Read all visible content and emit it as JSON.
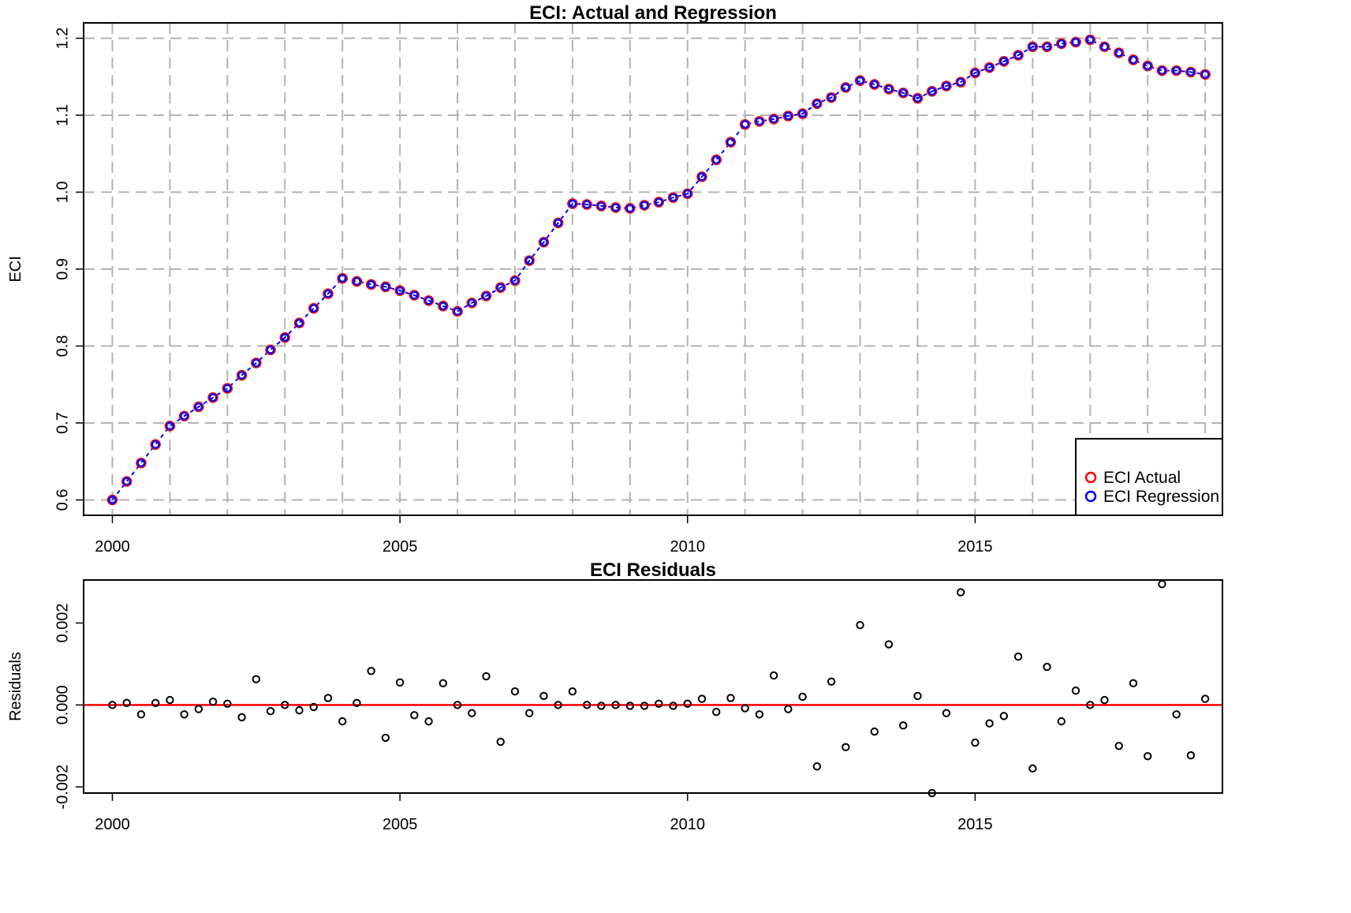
{
  "chart_data": [
    {
      "type": "scatter",
      "title": "ECI: Actual and Regression",
      "xlabel": "",
      "ylabel": "ECI",
      "xlim": [
        1999.5,
        2019.3
      ],
      "ylim": [
        0.58,
        1.22
      ],
      "x_ticks": [
        "2000",
        "2005",
        "2010",
        "2015"
      ],
      "y_ticks": [
        "0.6",
        "0.7",
        "0.8",
        "0.9",
        "1.0",
        "1.1",
        "1.2"
      ],
      "grid": true,
      "legend_position": "bottom-right",
      "x_start": 2000,
      "x_step": 0.25,
      "series": [
        {
          "name": "ECI Actual",
          "color": "#ff0000",
          "values": [
            0.6,
            0.624,
            0.648,
            0.672,
            0.696,
            0.709,
            0.721,
            0.733,
            0.745,
            0.762,
            0.778,
            0.795,
            0.811,
            0.83,
            0.849,
            0.868,
            0.888,
            0.884,
            0.88,
            0.877,
            0.872,
            0.866,
            0.859,
            0.852,
            0.845,
            0.856,
            0.865,
            0.876,
            0.885,
            0.911,
            0.935,
            0.96,
            0.985,
            0.984,
            0.982,
            0.98,
            0.979,
            0.983,
            0.987,
            0.993,
            0.998,
            1.02,
            1.042,
            1.065,
            1.088,
            1.092,
            1.095,
            1.099,
            1.102,
            1.115,
            1.123,
            1.136,
            1.145,
            1.14,
            1.134,
            1.129,
            1.122,
            1.131,
            1.138,
            1.143,
            1.155,
            1.162,
            1.17,
            1.178,
            1.189,
            1.189,
            1.193,
            1.195,
            1.198,
            1.189,
            1.181,
            1.172,
            1.164,
            1.158,
            1.158,
            1.156,
            1.153
          ]
        },
        {
          "name": "ECI Regression",
          "color": "#0000ff",
          "values": [
            0.6,
            0.624,
            0.648,
            0.672,
            0.696,
            0.709,
            0.721,
            0.733,
            0.745,
            0.762,
            0.778,
            0.795,
            0.811,
            0.83,
            0.849,
            0.868,
            0.888,
            0.884,
            0.88,
            0.877,
            0.872,
            0.866,
            0.859,
            0.852,
            0.845,
            0.856,
            0.865,
            0.876,
            0.885,
            0.911,
            0.935,
            0.96,
            0.985,
            0.984,
            0.982,
            0.98,
            0.979,
            0.983,
            0.987,
            0.993,
            0.998,
            1.02,
            1.042,
            1.065,
            1.088,
            1.092,
            1.095,
            1.099,
            1.102,
            1.115,
            1.123,
            1.136,
            1.145,
            1.14,
            1.134,
            1.129,
            1.122,
            1.131,
            1.138,
            1.143,
            1.155,
            1.162,
            1.17,
            1.178,
            1.189,
            1.189,
            1.193,
            1.195,
            1.198,
            1.189,
            1.181,
            1.172,
            1.164,
            1.158,
            1.158,
            1.156,
            1.153
          ]
        }
      ]
    },
    {
      "type": "scatter",
      "title": "ECI Residuals",
      "xlabel": "",
      "ylabel": "Residuals",
      "xlim": [
        1999.5,
        2019.3
      ],
      "ylim": [
        -0.00215,
        0.00305
      ],
      "x_ticks": [
        "2000",
        "2005",
        "2010",
        "2015"
      ],
      "y_ticks": [
        "-0.002",
        "0.000",
        "0.002"
      ],
      "y_tick_values": [
        -0.002,
        0.0,
        0.002
      ],
      "grid": false,
      "reference_line": {
        "y": 0,
        "color": "#ff0000"
      },
      "x_start": 2000,
      "x_step": 0.25,
      "series": [
        {
          "name": "",
          "color": "#000000",
          "values": [
            0.0,
            5e-05,
            -0.00023,
            5e-05,
            0.00012,
            -0.00023,
            -0.0001,
            8e-05,
            3e-05,
            -0.0003,
            0.00063,
            -0.00015,
            0.0,
            -0.00013,
            -5e-05,
            0.00017,
            -0.0004,
            5e-05,
            0.00083,
            -0.0008,
            0.00055,
            -0.00025,
            -0.0004,
            0.00053,
            0.0,
            -0.0002,
            0.0007,
            -0.0009,
            0.00033,
            -0.0002,
            0.00022,
            0.0,
            0.00033,
            0.0,
            -2e-05,
            0.0,
            -2e-05,
            -2e-05,
            3e-05,
            -2e-05,
            3e-05,
            0.00015,
            -0.00017,
            0.00017,
            -8e-05,
            -0.00023,
            0.00072,
            -0.0001,
            0.0002,
            -0.0015,
            0.00057,
            -0.00103,
            0.00195,
            -0.00065,
            0.00148,
            -0.0005,
            0.00022,
            -0.00215,
            -0.0002,
            0.00275,
            -0.00092,
            -0.00045,
            -0.00027,
            0.00118,
            -0.00155,
            0.00093,
            -0.0004,
            0.00035,
            0.0,
            0.00012,
            -0.001,
            0.00053,
            -0.00125,
            0.00295,
            -0.00023,
            -0.00123,
            0.00015
          ]
        }
      ]
    }
  ]
}
